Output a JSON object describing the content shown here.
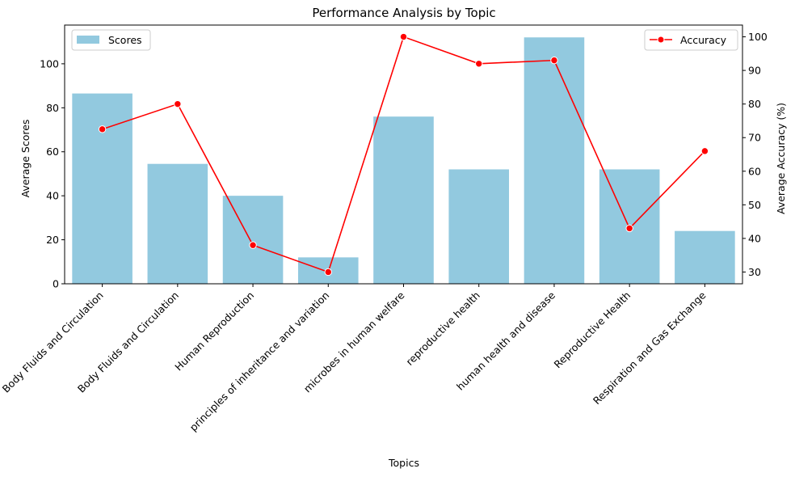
{
  "chart_data": {
    "type": "bar",
    "title": "Performance Analysis by Topic",
    "xlabel": "Topics",
    "ylabel": "Average Scores",
    "y2label": "Average Accuracy (%)",
    "categories": [
      "Body Fluids and Circulation",
      "Body Fluids and Circulation",
      "Human Reproduction",
      "principles of inheritance and variation",
      "microbes in human welfare",
      "reproductive health",
      "human health and disease",
      "Reproductive Health",
      "Respiration and Gas Exchange"
    ],
    "series": [
      {
        "name": "Scores",
        "type": "bar",
        "axis": "left",
        "color": "#92c9df",
        "values": [
          86.5,
          54.5,
          40,
          12,
          76,
          52,
          112,
          52,
          24
        ]
      },
      {
        "name": "Accuracy",
        "type": "line",
        "axis": "right",
        "color": "#ff0000",
        "values": [
          72.5,
          80,
          38,
          30,
          100,
          92,
          93,
          43,
          66
        ]
      }
    ],
    "ylim": [
      0,
      117.6
    ],
    "yticks": [
      0,
      20,
      40,
      60,
      80,
      100
    ],
    "y2lim": [
      26.5,
      103.5
    ],
    "y2ticks": [
      30,
      40,
      50,
      60,
      70,
      80,
      90,
      100
    ],
    "legend": [
      {
        "label": "Scores",
        "placement": "upper-left"
      },
      {
        "label": "Accuracy",
        "placement": "upper-right"
      }
    ],
    "grid": false
  }
}
